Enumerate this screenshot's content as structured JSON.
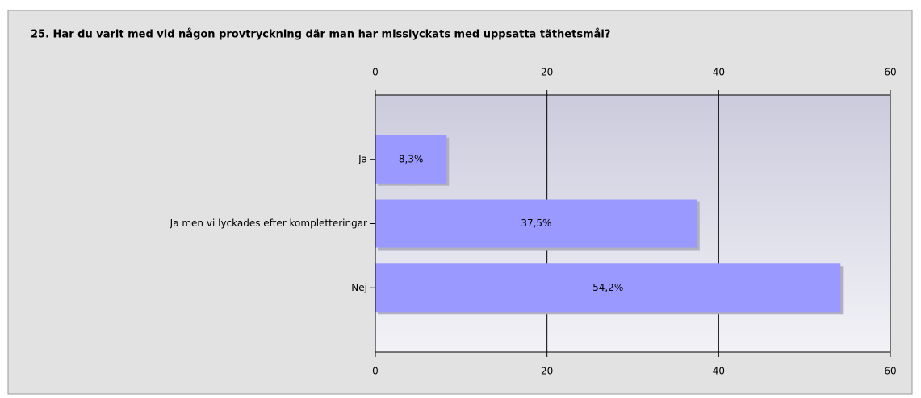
{
  "chart_data": {
    "type": "bar",
    "orientation": "horizontal",
    "title": "25. Har du varit med vid någon provtryckning där man har misslyckats med uppsatta täthetsmål?",
    "categories": [
      "Ja",
      "Ja men vi lyckades efter kompletteringar",
      "Nej"
    ],
    "values": [
      8.3,
      37.5,
      54.2
    ],
    "value_labels": [
      "8,3%",
      "37,5%",
      "54,2%"
    ],
    "color": "#9999ff",
    "xlim": [
      0,
      60
    ],
    "xticks": [
      0,
      20,
      40,
      60
    ],
    "grid": true
  }
}
